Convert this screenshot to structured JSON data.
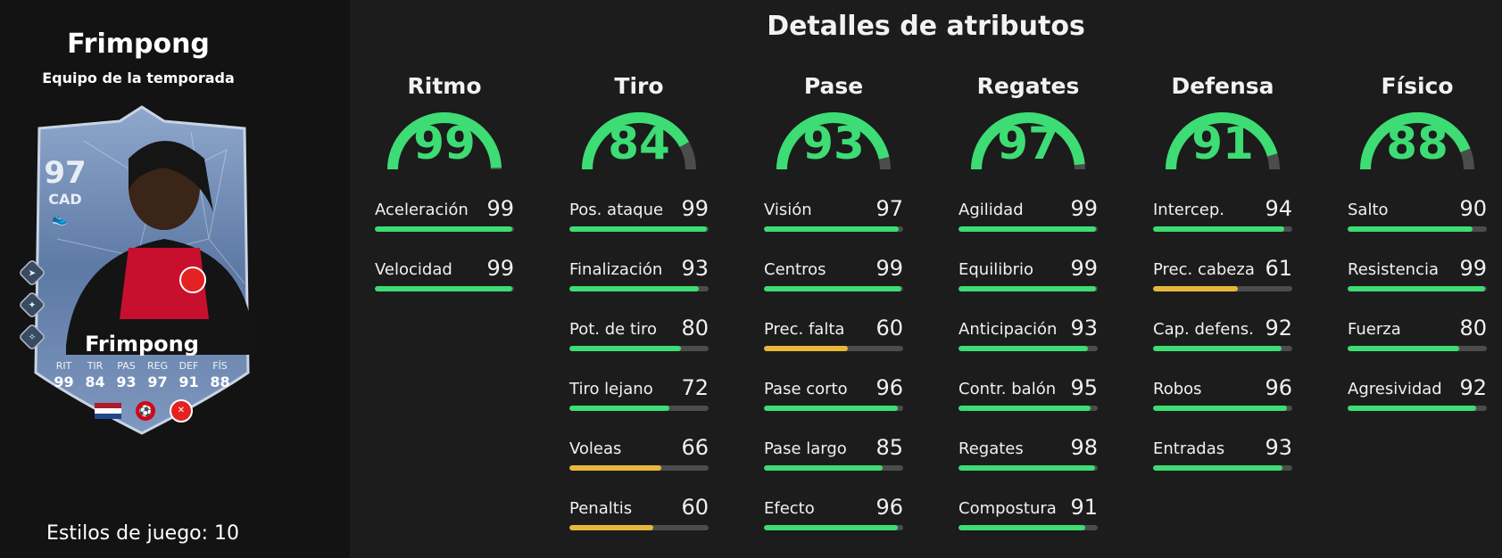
{
  "player": {
    "name": "Frimpong",
    "subtitle": "Equipo de la temporada",
    "playstyles_label": "Estilos de juego: 10"
  },
  "card": {
    "rating": "97",
    "position": "CAD",
    "name": "Frimpong",
    "stats": [
      {
        "label": "RIT",
        "value": "99"
      },
      {
        "label": "TIR",
        "value": "84"
      },
      {
        "label": "PAS",
        "value": "93"
      },
      {
        "label": "REG",
        "value": "97"
      },
      {
        "label": "DEF",
        "value": "91"
      },
      {
        "label": "FÍS",
        "value": "88"
      }
    ],
    "side_icons": [
      "playstyle-icon",
      "playstyle-icon",
      "playstyle-icon"
    ]
  },
  "title": "Detalles de atributos",
  "colors": {
    "green": "#3ddc74",
    "yellow": "#e8b73a",
    "track": "#4b4d4b"
  },
  "categories": [
    {
      "name": "Ritmo",
      "value": "99",
      "attributes": [
        {
          "label": "Aceleración",
          "value": "99"
        },
        {
          "label": "Velocidad",
          "value": "99"
        }
      ]
    },
    {
      "name": "Tiro",
      "value": "84",
      "attributes": [
        {
          "label": "Pos. ataque",
          "value": "99"
        },
        {
          "label": "Finalización",
          "value": "93"
        },
        {
          "label": "Pot. de tiro",
          "value": "80"
        },
        {
          "label": "Tiro lejano",
          "value": "72"
        },
        {
          "label": "Voleas",
          "value": "66"
        },
        {
          "label": "Penaltis",
          "value": "60"
        }
      ]
    },
    {
      "name": "Pase",
      "value": "93",
      "attributes": [
        {
          "label": "Visión",
          "value": "97"
        },
        {
          "label": "Centros",
          "value": "99"
        },
        {
          "label": "Prec. falta",
          "value": "60"
        },
        {
          "label": "Pase corto",
          "value": "96"
        },
        {
          "label": "Pase largo",
          "value": "85"
        },
        {
          "label": "Efecto",
          "value": "96"
        }
      ]
    },
    {
      "name": "Regates",
      "value": "97",
      "attributes": [
        {
          "label": "Agilidad",
          "value": "99"
        },
        {
          "label": "Equilibrio",
          "value": "99"
        },
        {
          "label": "Anticipación",
          "value": "93"
        },
        {
          "label": "Contr. balón",
          "value": "95"
        },
        {
          "label": "Regates",
          "value": "98"
        },
        {
          "label": "Compostura",
          "value": "91"
        }
      ]
    },
    {
      "name": "Defensa",
      "value": "91",
      "attributes": [
        {
          "label": "Intercep.",
          "value": "94"
        },
        {
          "label": "Prec. cabeza",
          "value": "61"
        },
        {
          "label": "Cap. defens.",
          "value": "92"
        },
        {
          "label": "Robos",
          "value": "96"
        },
        {
          "label": "Entradas",
          "value": "93"
        }
      ]
    },
    {
      "name": "Físico",
      "value": "88",
      "attributes": [
        {
          "label": "Salto",
          "value": "90"
        },
        {
          "label": "Resistencia",
          "value": "99"
        },
        {
          "label": "Fuerza",
          "value": "80"
        },
        {
          "label": "Agresividad",
          "value": "92"
        }
      ]
    }
  ]
}
